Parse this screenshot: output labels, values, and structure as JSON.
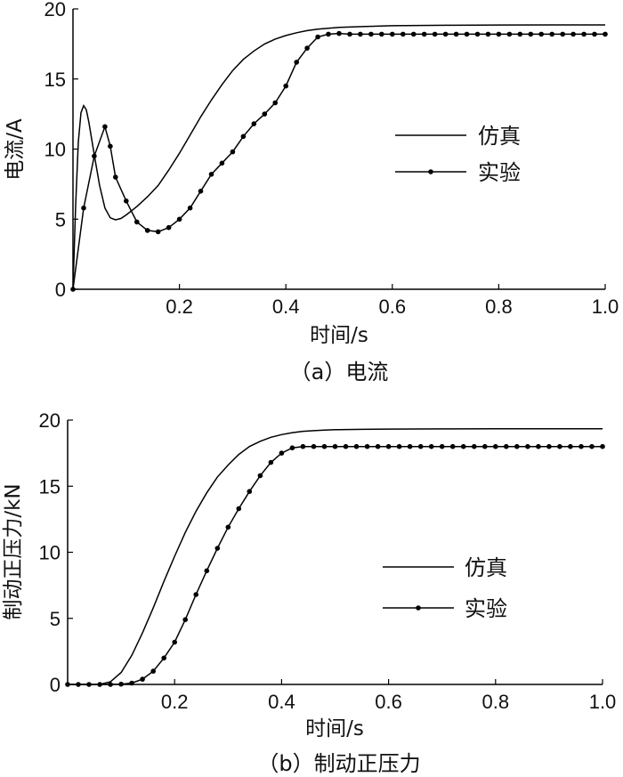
{
  "chart_data": [
    {
      "type": "line",
      "caption": "（a）电流",
      "xlabel": "时间/s",
      "ylabel": "电流/A",
      "xlim": [
        0,
        1.0
      ],
      "ylim": [
        0,
        20
      ],
      "xticks": [
        "0.2",
        "0.4",
        "0.6",
        "0.8",
        "1.0"
      ],
      "xtick_values": [
        0.2,
        0.4,
        0.6,
        0.8,
        1.0
      ],
      "yticks": [
        "0",
        "5",
        "10",
        "15",
        "20"
      ],
      "ytick_values": [
        0,
        5,
        10,
        15,
        20
      ],
      "legend_position": "center-right",
      "series": [
        {
          "name": "仿真",
          "marker": false,
          "x": [
            0,
            0.005,
            0.01,
            0.015,
            0.02,
            0.025,
            0.03,
            0.04,
            0.05,
            0.06,
            0.07,
            0.08,
            0.09,
            0.1,
            0.12,
            0.14,
            0.16,
            0.18,
            0.2,
            0.22,
            0.24,
            0.26,
            0.28,
            0.3,
            0.32,
            0.34,
            0.36,
            0.38,
            0.4,
            0.42,
            0.44,
            0.46,
            0.48,
            0.5,
            0.55,
            0.6,
            0.7,
            0.8,
            0.9,
            1.0
          ],
          "y": [
            0,
            6.0,
            10.5,
            12.6,
            13.1,
            12.8,
            11.9,
            9.6,
            7.4,
            5.8,
            5.1,
            4.95,
            5.05,
            5.3,
            5.9,
            6.6,
            7.4,
            8.5,
            9.7,
            11.0,
            12.3,
            13.5,
            14.6,
            15.6,
            16.4,
            17.0,
            17.5,
            17.85,
            18.1,
            18.3,
            18.45,
            18.55,
            18.62,
            18.68,
            18.75,
            18.8,
            18.83,
            18.85,
            18.86,
            18.86
          ]
        },
        {
          "name": "实验",
          "marker": true,
          "x": [
            0,
            0.02,
            0.04,
            0.06,
            0.07,
            0.08,
            0.1,
            0.12,
            0.14,
            0.16,
            0.18,
            0.2,
            0.22,
            0.24,
            0.26,
            0.28,
            0.3,
            0.32,
            0.34,
            0.36,
            0.38,
            0.4,
            0.42,
            0.44,
            0.46,
            0.48,
            0.5,
            0.52,
            0.54,
            0.56,
            0.58,
            0.6,
            0.62,
            0.64,
            0.66,
            0.68,
            0.7,
            0.72,
            0.74,
            0.76,
            0.78,
            0.8,
            0.82,
            0.84,
            0.86,
            0.88,
            0.9,
            0.92,
            0.94,
            0.96,
            0.98,
            1.0
          ],
          "y": [
            0,
            5.8,
            9.5,
            11.6,
            10.2,
            8.0,
            6.3,
            4.8,
            4.2,
            4.1,
            4.4,
            5.0,
            5.8,
            7.0,
            8.2,
            9.0,
            9.8,
            10.9,
            11.8,
            12.5,
            13.3,
            14.5,
            16.2,
            17.2,
            18.0,
            18.2,
            18.25,
            18.2,
            18.2,
            18.2,
            18.2,
            18.2,
            18.2,
            18.2,
            18.2,
            18.2,
            18.2,
            18.2,
            18.2,
            18.2,
            18.2,
            18.2,
            18.2,
            18.2,
            18.2,
            18.2,
            18.2,
            18.2,
            18.2,
            18.2,
            18.2,
            18.2
          ]
        }
      ]
    },
    {
      "type": "line",
      "caption": "（b）制动正压力",
      "xlabel": "时间/s",
      "ylabel": "制动正压力/kN",
      "xlim": [
        0,
        1.0
      ],
      "ylim": [
        0,
        20
      ],
      "xticks": [
        "0.2",
        "0.4",
        "0.6",
        "0.8",
        "1.0"
      ],
      "xtick_values": [
        0.2,
        0.4,
        0.6,
        0.8,
        1.0
      ],
      "yticks": [
        "0",
        "5",
        "10",
        "15",
        "20"
      ],
      "ytick_values": [
        0,
        5,
        10,
        15,
        20
      ],
      "legend_position": "center-right",
      "series": [
        {
          "name": "仿真",
          "marker": false,
          "x": [
            0,
            0.06,
            0.08,
            0.1,
            0.12,
            0.14,
            0.16,
            0.18,
            0.2,
            0.22,
            0.24,
            0.26,
            0.28,
            0.3,
            0.32,
            0.34,
            0.36,
            0.38,
            0.4,
            0.42,
            0.44,
            0.46,
            0.48,
            0.5,
            0.55,
            0.6,
            0.7,
            0.8,
            0.9,
            1.0
          ],
          "y": [
            0,
            0.0,
            0.2,
            0.9,
            2.2,
            3.9,
            5.8,
            7.8,
            9.7,
            11.5,
            13.1,
            14.5,
            15.7,
            16.6,
            17.4,
            18.0,
            18.4,
            18.7,
            18.9,
            19.05,
            19.15,
            19.2,
            19.24,
            19.27,
            19.3,
            19.32,
            19.33,
            19.34,
            19.34,
            19.34
          ]
        },
        {
          "name": "实验",
          "marker": true,
          "x": [
            0,
            0.02,
            0.04,
            0.06,
            0.08,
            0.1,
            0.12,
            0.14,
            0.16,
            0.18,
            0.2,
            0.22,
            0.24,
            0.26,
            0.28,
            0.3,
            0.32,
            0.34,
            0.36,
            0.38,
            0.4,
            0.42,
            0.44,
            0.46,
            0.48,
            0.5,
            0.52,
            0.54,
            0.56,
            0.58,
            0.6,
            0.62,
            0.64,
            0.66,
            0.68,
            0.7,
            0.72,
            0.74,
            0.76,
            0.78,
            0.8,
            0.82,
            0.84,
            0.86,
            0.88,
            0.9,
            0.92,
            0.94,
            0.96,
            0.98,
            1.0
          ],
          "y": [
            0,
            0,
            0,
            0,
            0,
            0.02,
            0.1,
            0.4,
            1.0,
            2.0,
            3.2,
            4.9,
            6.8,
            8.6,
            10.3,
            11.9,
            13.3,
            14.6,
            15.8,
            16.8,
            17.5,
            17.9,
            18.0,
            18.0,
            18.0,
            18.0,
            18.0,
            18.0,
            18.0,
            18.0,
            18.0,
            18.0,
            18.0,
            18.0,
            18.0,
            18.0,
            18.0,
            18.0,
            18.0,
            18.0,
            18.0,
            18.0,
            18.0,
            18.0,
            18.0,
            18.0,
            18.0,
            18.0,
            18.0,
            18.0,
            18.0
          ]
        }
      ]
    }
  ]
}
